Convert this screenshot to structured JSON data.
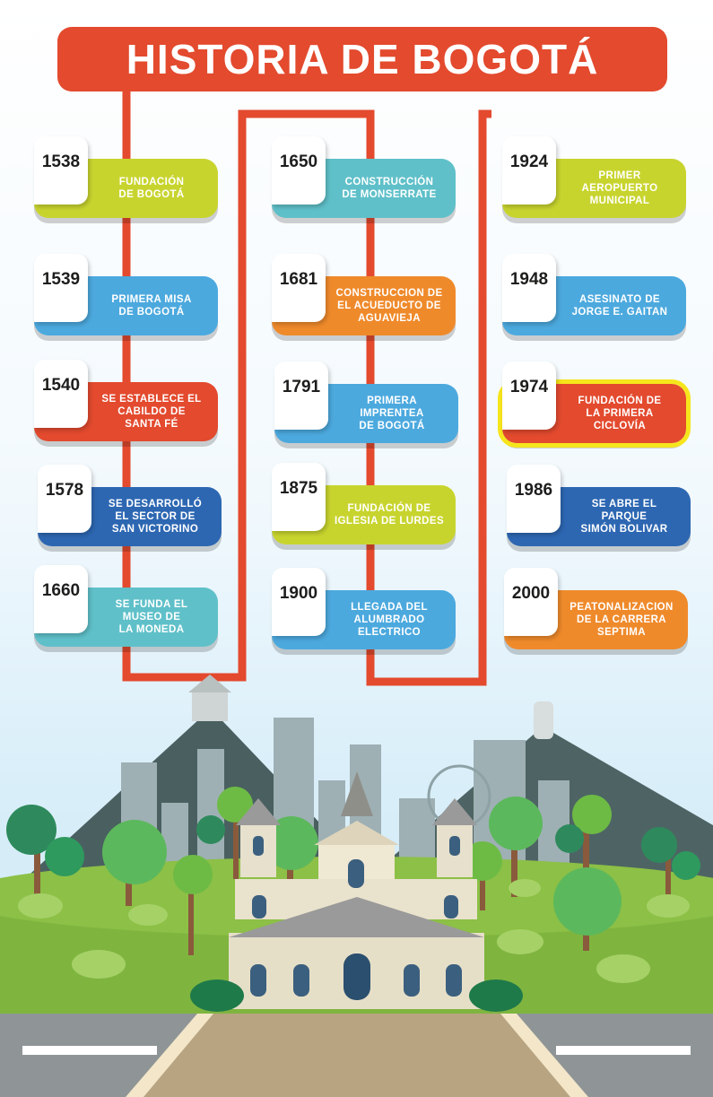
{
  "title": "HISTORIA DE BOGOTÁ",
  "colors": {
    "title_bg": "#e34a2e",
    "timeline_line": "#e34a2e",
    "highlight_border": "#f6e51c",
    "green": "#c8d42e",
    "blue": "#4ca9de",
    "red": "#e34a2e",
    "navy": "#2d67b2",
    "teal": "#5fc0c9",
    "orange": "#ef8a2b"
  },
  "columns": [
    {
      "events": [
        {
          "year": "1538",
          "text": "FUNDACIÓN\nDE BOGOTÁ",
          "color": "green"
        },
        {
          "year": "1539",
          "text": "PRIMERA MISA\nDE  BOGOTÁ",
          "color": "blue"
        },
        {
          "year": "1540",
          "text": "SE ESTABLECE EL\nCABILDO DE\nSANTA FÉ",
          "color": "red"
        },
        {
          "year": "1578",
          "text": "SE DESARROLLÓ\nEL SECTOR DE\nSAN VICTORINO",
          "color": "navy"
        },
        {
          "year": "1660",
          "text": "SE FUNDA EL\nMUSEO DE\nLA MONEDA",
          "color": "teal"
        }
      ]
    },
    {
      "events": [
        {
          "year": "1650",
          "text": "CONSTRUCCIÓN\nDE MONSERRATE",
          "color": "teal"
        },
        {
          "year": "1681",
          "text": "CONSTRUCCION DE\nEL ACUEDUCTO DE\nAGUAVIEJA",
          "color": "orange"
        },
        {
          "year": "1791",
          "text": "PRIMERA\nIMPRENTEA\nDE BOGOTÁ",
          "color": "blue"
        },
        {
          "year": "1875",
          "text": "FUNDACIÓN DE\nIGLESIA DE LURDES",
          "color": "green"
        },
        {
          "year": "1900",
          "text": "LLEGADA DEL\nALUMBRADO\nELECTRICO",
          "color": "blue"
        }
      ]
    },
    {
      "events": [
        {
          "year": "1924",
          "text": "PRIMER\nAEROPUERTO\nMUNICIPAL",
          "color": "green"
        },
        {
          "year": "1948",
          "text": "ASESINATO DE\nJORGE E. GAITAN",
          "color": "blue"
        },
        {
          "year": "1974",
          "text": "FUNDACIÓN DE\nLA PRIMERA\nCICLOVÍA",
          "color": "red",
          "highlight": true
        },
        {
          "year": "1986",
          "text": "SE ABRE EL\nPARQUE\nSIMÓN BOLIVAR",
          "color": "navy"
        },
        {
          "year": "2000",
          "text": "PEATONALIZACION\nDE LA CARRERA\nSEPTIMA",
          "color": "orange"
        }
      ]
    }
  ]
}
